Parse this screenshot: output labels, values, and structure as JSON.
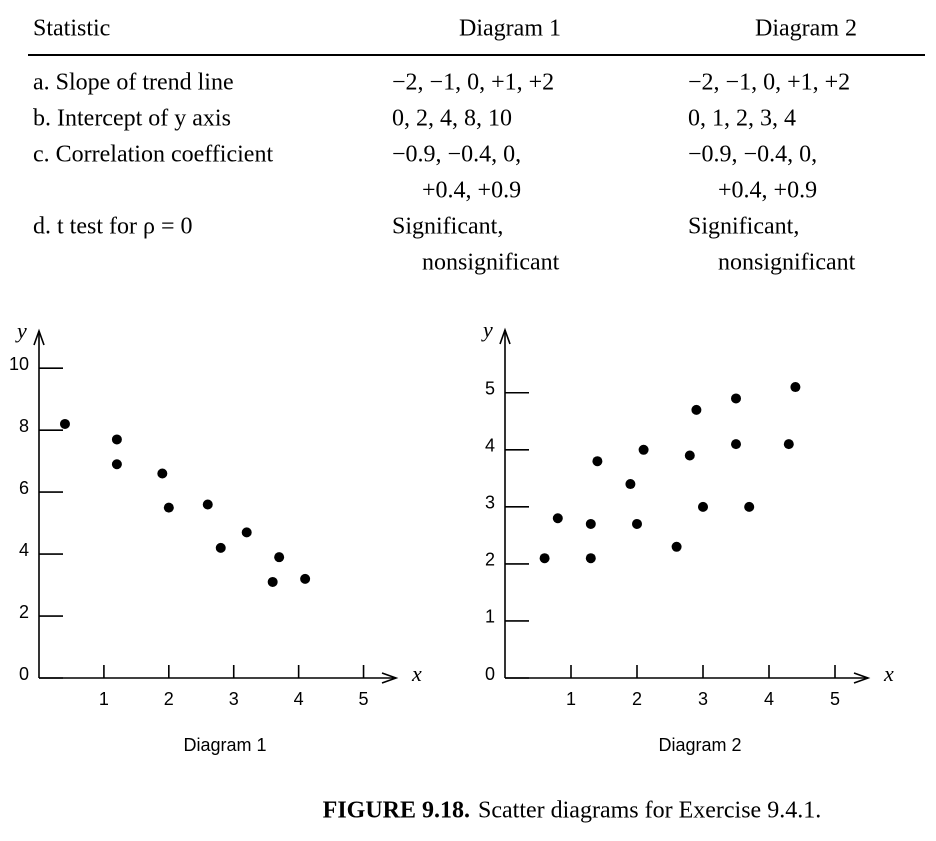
{
  "table": {
    "header": [
      "Statistic",
      "Diagram 1",
      "Diagram 2"
    ],
    "rows": [
      [
        [
          "a. Slope of trend line"
        ],
        [
          "−2, −1, 0, +1, +2"
        ],
        [
          "−2, −1, 0, +1, +2"
        ]
      ],
      [
        [
          "b. Intercept of y axis"
        ],
        [
          "0, 2, 4, 8, 10"
        ],
        [
          "0, 1, 2, 3, 4"
        ]
      ],
      [
        [
          "c. Correlation coefficient"
        ],
        [
          "−0.9, −0.4, 0,",
          "+0.4, +0.9"
        ],
        [
          "−0.9, −0.4, 0,",
          "+0.4, +0.9"
        ]
      ],
      [
        [
          "d. t test for ρ = 0"
        ],
        [
          "Significant,",
          "nonsignificant"
        ],
        [
          "Significant,",
          "nonsignificant"
        ]
      ]
    ]
  },
  "chart_data": [
    {
      "type": "scatter",
      "title": "Diagram 1",
      "x_label": "x",
      "y_label": "y",
      "x": [
        0.4,
        1.2,
        1.2,
        1.9,
        2.0,
        2.6,
        2.8,
        3.2,
        3.7,
        3.6,
        4.1
      ],
      "values": [
        8.2,
        7.7,
        6.9,
        6.6,
        5.5,
        5.6,
        4.2,
        4.7,
        3.9,
        3.1,
        3.2
      ],
      "color": "#000000",
      "xlim": [
        0,
        5.5
      ],
      "ylim": [
        0,
        11.2
      ],
      "xticks": [
        1,
        2,
        3,
        4,
        5
      ],
      "yticks": [
        0,
        2,
        4,
        6,
        8,
        10
      ]
    },
    {
      "type": "scatter",
      "title": "Diagram 2",
      "x_label": "x",
      "y_label": "y",
      "x": [
        0.6,
        0.8,
        1.3,
        1.3,
        1.4,
        1.9,
        2.0,
        2.1,
        2.6,
        2.8,
        2.9,
        3.0,
        3.5,
        3.5,
        3.7,
        4.3,
        4.4
      ],
      "values": [
        2.1,
        2.8,
        2.7,
        2.1,
        3.8,
        3.4,
        2.7,
        4.0,
        2.3,
        3.9,
        4.7,
        3.0,
        4.9,
        4.1,
        3.0,
        4.1,
        5.1
      ],
      "color": "#000000",
      "xlim": [
        0,
        5.5
      ],
      "ylim": [
        0,
        6.1
      ],
      "xticks": [
        1,
        2,
        3,
        4,
        5
      ],
      "yticks": [
        0,
        1,
        2,
        3,
        4,
        5
      ]
    }
  ],
  "figure": {
    "label": "FIGURE 9.18.",
    "caption": "Scatter diagrams for Exercise 9.4.1."
  }
}
